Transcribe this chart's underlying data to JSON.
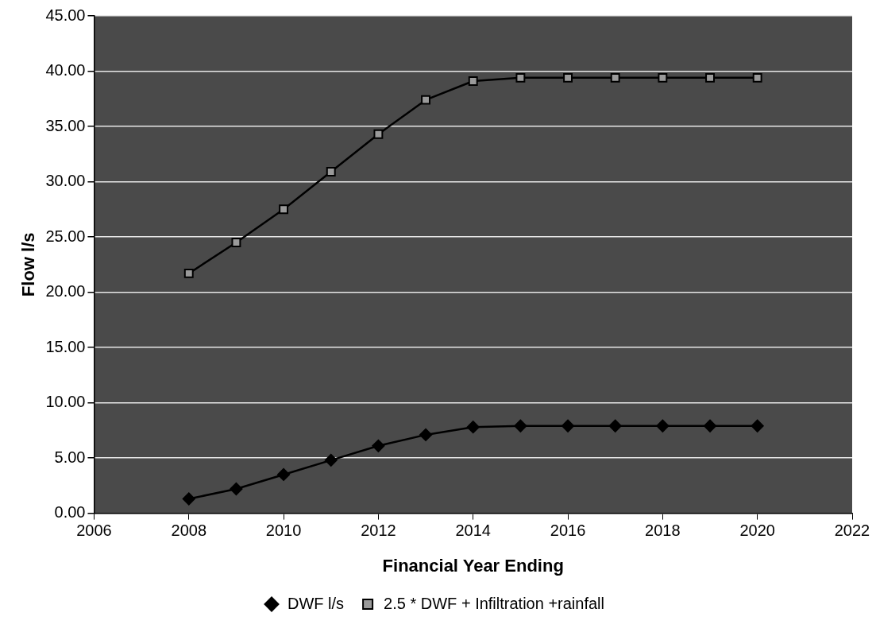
{
  "chart_data": {
    "type": "line",
    "xlabel": "Financial Year Ending",
    "ylabel": "Flow l/s",
    "x": [
      2008,
      2009,
      2010,
      2011,
      2012,
      2013,
      2014,
      2015,
      2016,
      2017,
      2018,
      2019,
      2020
    ],
    "series": [
      {
        "name": "DWF l/s",
        "color": "#000000",
        "marker": "diamond",
        "values": [
          1.3,
          2.2,
          3.5,
          4.8,
          6.1,
          7.1,
          7.8,
          7.9,
          7.9,
          7.9,
          7.9,
          7.9,
          7.9
        ]
      },
      {
        "name": "2.5 * DWF + Infiltration +rainfall",
        "color": "#000000",
        "marker": "square",
        "values": [
          21.7,
          24.5,
          27.5,
          30.9,
          34.3,
          37.4,
          39.1,
          39.4,
          39.4,
          39.4,
          39.4,
          39.4,
          39.4
        ]
      }
    ],
    "xlim": [
      2006,
      2022
    ],
    "xticks": [
      2006,
      2008,
      2010,
      2012,
      2014,
      2016,
      2018,
      2020,
      2022
    ],
    "ylim": [
      0,
      45
    ],
    "yticks": [
      {
        "value": 0,
        "label": "0.00"
      },
      {
        "value": 5,
        "label": "5.00"
      },
      {
        "value": 10,
        "label": "10.00"
      },
      {
        "value": 15,
        "label": "15.00"
      },
      {
        "value": 20,
        "label": "20.00"
      },
      {
        "value": 25,
        "label": "25.00"
      },
      {
        "value": 30,
        "label": "30.00"
      },
      {
        "value": 35,
        "label": "35.00"
      },
      {
        "value": 40,
        "label": "40.00"
      },
      {
        "value": 45,
        "label": "45.00"
      }
    ],
    "grid": "y",
    "legend": "bottom",
    "line_style": "solid"
  }
}
